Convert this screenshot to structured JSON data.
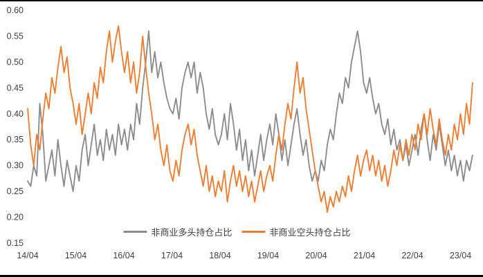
{
  "page": {
    "background": "#ffffff",
    "frame_rule_color": "#000000"
  },
  "chart_data": {
    "type": "line",
    "title": "",
    "xlabel": "",
    "ylabel": "",
    "grid": false,
    "legend_position": "bottom-center",
    "ylim": [
      0.15,
      0.6
    ],
    "y_tick_labels": [
      "0.60",
      "0.55",
      "0.50",
      "0.45",
      "0.40",
      "0.35",
      "0.30",
      "0.25",
      "0.20",
      "0.15"
    ],
    "x_tick_labels": [
      "14/04",
      "15/04",
      "16/04",
      "17/04",
      "18/04",
      "19/04",
      "20/04",
      "21/04",
      "22/04",
      "23/04"
    ],
    "x_span_years": 9.25,
    "axis_text_color": "#404040",
    "series": [
      {
        "name": "非商业多头持仓占比",
        "color": "#8C8C8C",
        "values": [
          0.27,
          0.26,
          0.3,
          0.28,
          0.42,
          0.36,
          0.27,
          0.3,
          0.33,
          0.28,
          0.35,
          0.3,
          0.26,
          0.31,
          0.28,
          0.25,
          0.3,
          0.27,
          0.33,
          0.36,
          0.3,
          0.34,
          0.38,
          0.32,
          0.35,
          0.31,
          0.37,
          0.33,
          0.36,
          0.32,
          0.38,
          0.34,
          0.37,
          0.33,
          0.38,
          0.35,
          0.42,
          0.38,
          0.45,
          0.5,
          0.56,
          0.48,
          0.52,
          0.47,
          0.5,
          0.46,
          0.43,
          0.41,
          0.4,
          0.43,
          0.39,
          0.45,
          0.48,
          0.5,
          0.47,
          0.5,
          0.44,
          0.48,
          0.45,
          0.4,
          0.37,
          0.41,
          0.36,
          0.34,
          0.36,
          0.4,
          0.35,
          0.42,
          0.38,
          0.33,
          0.37,
          0.31,
          0.35,
          0.29,
          0.33,
          0.28,
          0.32,
          0.36,
          0.31,
          0.35,
          0.38,
          0.34,
          0.4,
          0.36,
          0.31,
          0.35,
          0.3,
          0.34,
          0.38,
          0.41,
          0.36,
          0.32,
          0.35,
          0.3,
          0.27,
          0.29,
          0.27,
          0.31,
          0.29,
          0.34,
          0.37,
          0.35,
          0.4,
          0.44,
          0.42,
          0.47,
          0.45,
          0.5,
          0.53,
          0.56,
          0.52,
          0.46,
          0.44,
          0.47,
          0.43,
          0.4,
          0.42,
          0.38,
          0.36,
          0.39,
          0.34,
          0.37,
          0.33,
          0.35,
          0.31,
          0.34,
          0.3,
          0.33,
          0.36,
          0.32,
          0.37,
          0.4,
          0.35,
          0.31,
          0.36,
          0.33,
          0.38,
          0.34,
          0.3,
          0.33,
          0.29,
          0.32,
          0.28,
          0.31,
          0.27,
          0.31,
          0.29,
          0.32
        ]
      },
      {
        "name": "非商业空头持仓占比",
        "color": "#ED7D31",
        "values": [
          0.41,
          0.34,
          0.3,
          0.36,
          0.33,
          0.39,
          0.44,
          0.41,
          0.47,
          0.44,
          0.49,
          0.53,
          0.48,
          0.51,
          0.45,
          0.42,
          0.38,
          0.42,
          0.36,
          0.4,
          0.44,
          0.4,
          0.46,
          0.43,
          0.49,
          0.46,
          0.52,
          0.56,
          0.5,
          0.54,
          0.57,
          0.52,
          0.48,
          0.52,
          0.46,
          0.5,
          0.44,
          0.48,
          0.55,
          0.49,
          0.44,
          0.4,
          0.35,
          0.38,
          0.33,
          0.3,
          0.34,
          0.29,
          0.27,
          0.31,
          0.28,
          0.33,
          0.36,
          0.38,
          0.34,
          0.37,
          0.32,
          0.29,
          0.26,
          0.3,
          0.25,
          0.28,
          0.24,
          0.27,
          0.25,
          0.29,
          0.23,
          0.27,
          0.3,
          0.26,
          0.29,
          0.25,
          0.28,
          0.24,
          0.27,
          0.23,
          0.26,
          0.29,
          0.25,
          0.28,
          0.3,
          0.27,
          0.32,
          0.36,
          0.33,
          0.38,
          0.42,
          0.39,
          0.45,
          0.5,
          0.44,
          0.47,
          0.41,
          0.37,
          0.33,
          0.29,
          0.26,
          0.23,
          0.25,
          0.21,
          0.24,
          0.22,
          0.25,
          0.23,
          0.26,
          0.24,
          0.28,
          0.25,
          0.29,
          0.32,
          0.28,
          0.31,
          0.33,
          0.29,
          0.32,
          0.28,
          0.31,
          0.27,
          0.3,
          0.26,
          0.29,
          0.33,
          0.3,
          0.34,
          0.31,
          0.35,
          0.32,
          0.36,
          0.33,
          0.38,
          0.35,
          0.4,
          0.36,
          0.41,
          0.37,
          0.34,
          0.39,
          0.35,
          0.32,
          0.36,
          0.33,
          0.38,
          0.35,
          0.4,
          0.36,
          0.42,
          0.38,
          0.46
        ]
      }
    ]
  }
}
